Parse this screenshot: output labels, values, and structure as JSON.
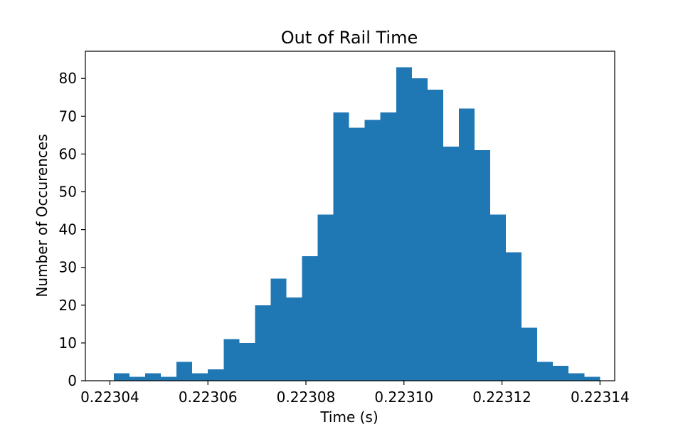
{
  "chart_data": {
    "type": "bar",
    "title": "Out of Rail Time",
    "xlabel": "Time (s)",
    "ylabel": "Number of Occurences",
    "xlim": [
      0.223035,
      0.223143
    ],
    "ylim": [
      0,
      87.2
    ],
    "xticks": [
      {
        "value": 0.22304,
        "label": "0.22304"
      },
      {
        "value": 0.22306,
        "label": "0.22306"
      },
      {
        "value": 0.22308,
        "label": "0.22308"
      },
      {
        "value": 0.2231,
        "label": "0.22310"
      },
      {
        "value": 0.22312,
        "label": "0.22312"
      },
      {
        "value": 0.22314,
        "label": "0.22314"
      }
    ],
    "yticks": [
      {
        "value": 0,
        "label": "0"
      },
      {
        "value": 10,
        "label": "10"
      },
      {
        "value": 20,
        "label": "20"
      },
      {
        "value": 30,
        "label": "30"
      },
      {
        "value": 40,
        "label": "40"
      },
      {
        "value": 50,
        "label": "50"
      },
      {
        "value": 60,
        "label": "60"
      },
      {
        "value": 70,
        "label": "70"
      },
      {
        "value": 80,
        "label": "80"
      }
    ],
    "bin_start": 0.2230408,
    "bin_width": 3.2e-06,
    "values": [
      2,
      1,
      2,
      1,
      5,
      2,
      3,
      11,
      10,
      20,
      27,
      22,
      33,
      44,
      71,
      67,
      69,
      71,
      83,
      80,
      77,
      62,
      72,
      61,
      44,
      34,
      14,
      5,
      4,
      2,
      1
    ],
    "bar_color": "#1f77b4",
    "grid": false,
    "legend": "none"
  }
}
